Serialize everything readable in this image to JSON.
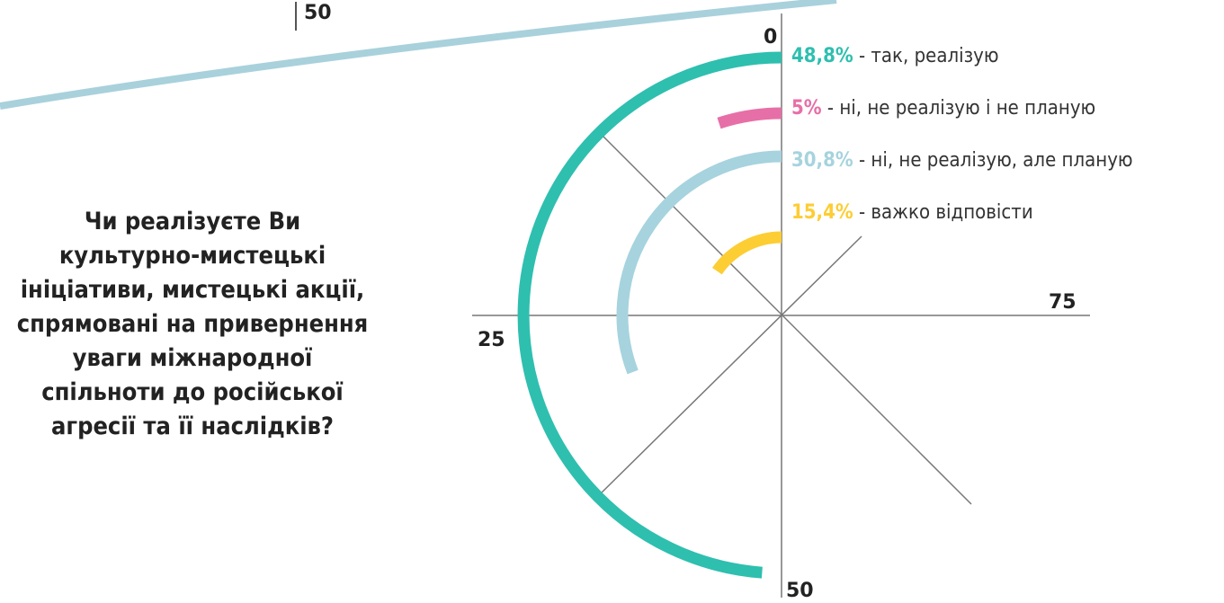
{
  "page_number": "50",
  "question": "Чи реалізуєте Ви культурно-мистецькі ініціативи, мистецькі акції, спрямовані на привернення уваги міжнародної спільноти до російської агресії та її наслідків?",
  "colors": {
    "teal": "#2ebfaf",
    "pink": "#e76fa7",
    "light_blue": "#a6d3de",
    "yellow": "#fdcd34",
    "band": "#a8d1dc",
    "grid": "#777777"
  },
  "chart_data": {
    "type": "radial-bar",
    "scale_ticks": [
      "0",
      "25",
      "50",
      "75"
    ],
    "scale_max": 100,
    "series": [
      {
        "name": "так, реалізую",
        "value": 48.8,
        "label": "48,8%",
        "color": "#2ebfaf"
      },
      {
        "name": "ні, не реалізую і не планую",
        "value": 5,
        "label": "5%",
        "color": "#e76fa7"
      },
      {
        "name": "ні, не реалізую, але планую",
        "value": 30.8,
        "label": "30,8%",
        "color": "#a6d3de"
      },
      {
        "name": "важко відповісти",
        "value": 15.4,
        "label": "15,4%",
        "color": "#fdcd34"
      }
    ]
  },
  "legend": [
    {
      "pct": "48,8%",
      "text": " - так, реалізую",
      "color": "#2ebfaf"
    },
    {
      "pct": "5%",
      "text": " - ні, не реалізую і не планую",
      "color": "#e76fa7"
    },
    {
      "pct": "30,8%",
      "text": " - ні, не реалізую, але планую",
      "color": "#a6d3de"
    },
    {
      "pct": "15,4%",
      "text": " - важко відповісти",
      "color": "#fdcd34"
    }
  ]
}
